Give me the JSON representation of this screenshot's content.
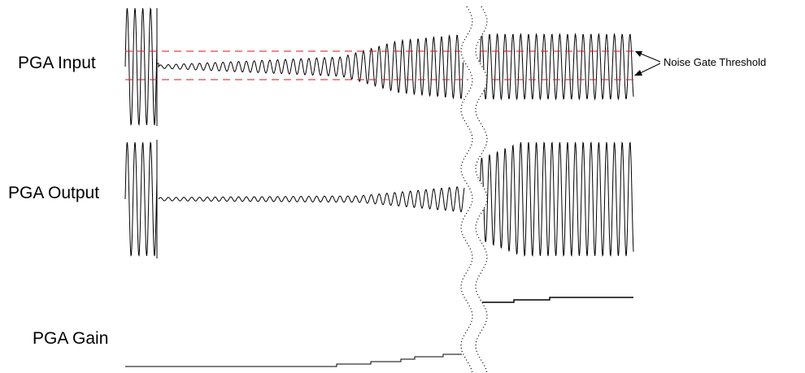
{
  "labels": {
    "pga_input": "PGA Input",
    "pga_output": "PGA Output",
    "pga_gain": "PGA Gain",
    "threshold_note": "Noise Gate Threshold"
  },
  "colors": {
    "waveform": "#000000",
    "threshold": "#e0101a",
    "break_marker": "#000000",
    "background": "#ffffff"
  }
}
